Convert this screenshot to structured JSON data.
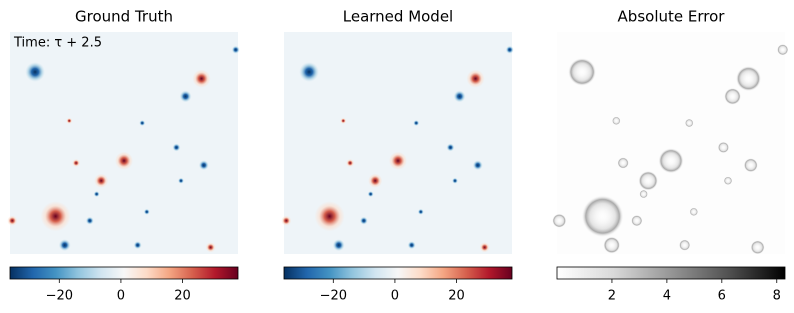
{
  "chart_data": [
    {
      "type": "heatmap",
      "title": "Ground Truth",
      "annotation": "Time: τ + 2.5",
      "colorbar": {
        "colormap": "RdBu_r",
        "lim": [
          -36,
          38
        ],
        "ticks": [
          {
            "value": -20,
            "label": "−20"
          },
          0,
          20
        ]
      }
    },
    {
      "type": "heatmap",
      "title": "Learned Model",
      "colorbar": {
        "colormap": "RdBu_r",
        "lim": [
          -36,
          38
        ],
        "ticks": [
          {
            "value": -20,
            "label": "−20"
          },
          0,
          20
        ]
      }
    },
    {
      "type": "heatmap",
      "title": "Absolute Error",
      "colorbar": {
        "colormap": "Greys",
        "lim": [
          0,
          8.3
        ],
        "ticks": [
          2,
          4,
          6,
          8
        ]
      }
    }
  ]
}
